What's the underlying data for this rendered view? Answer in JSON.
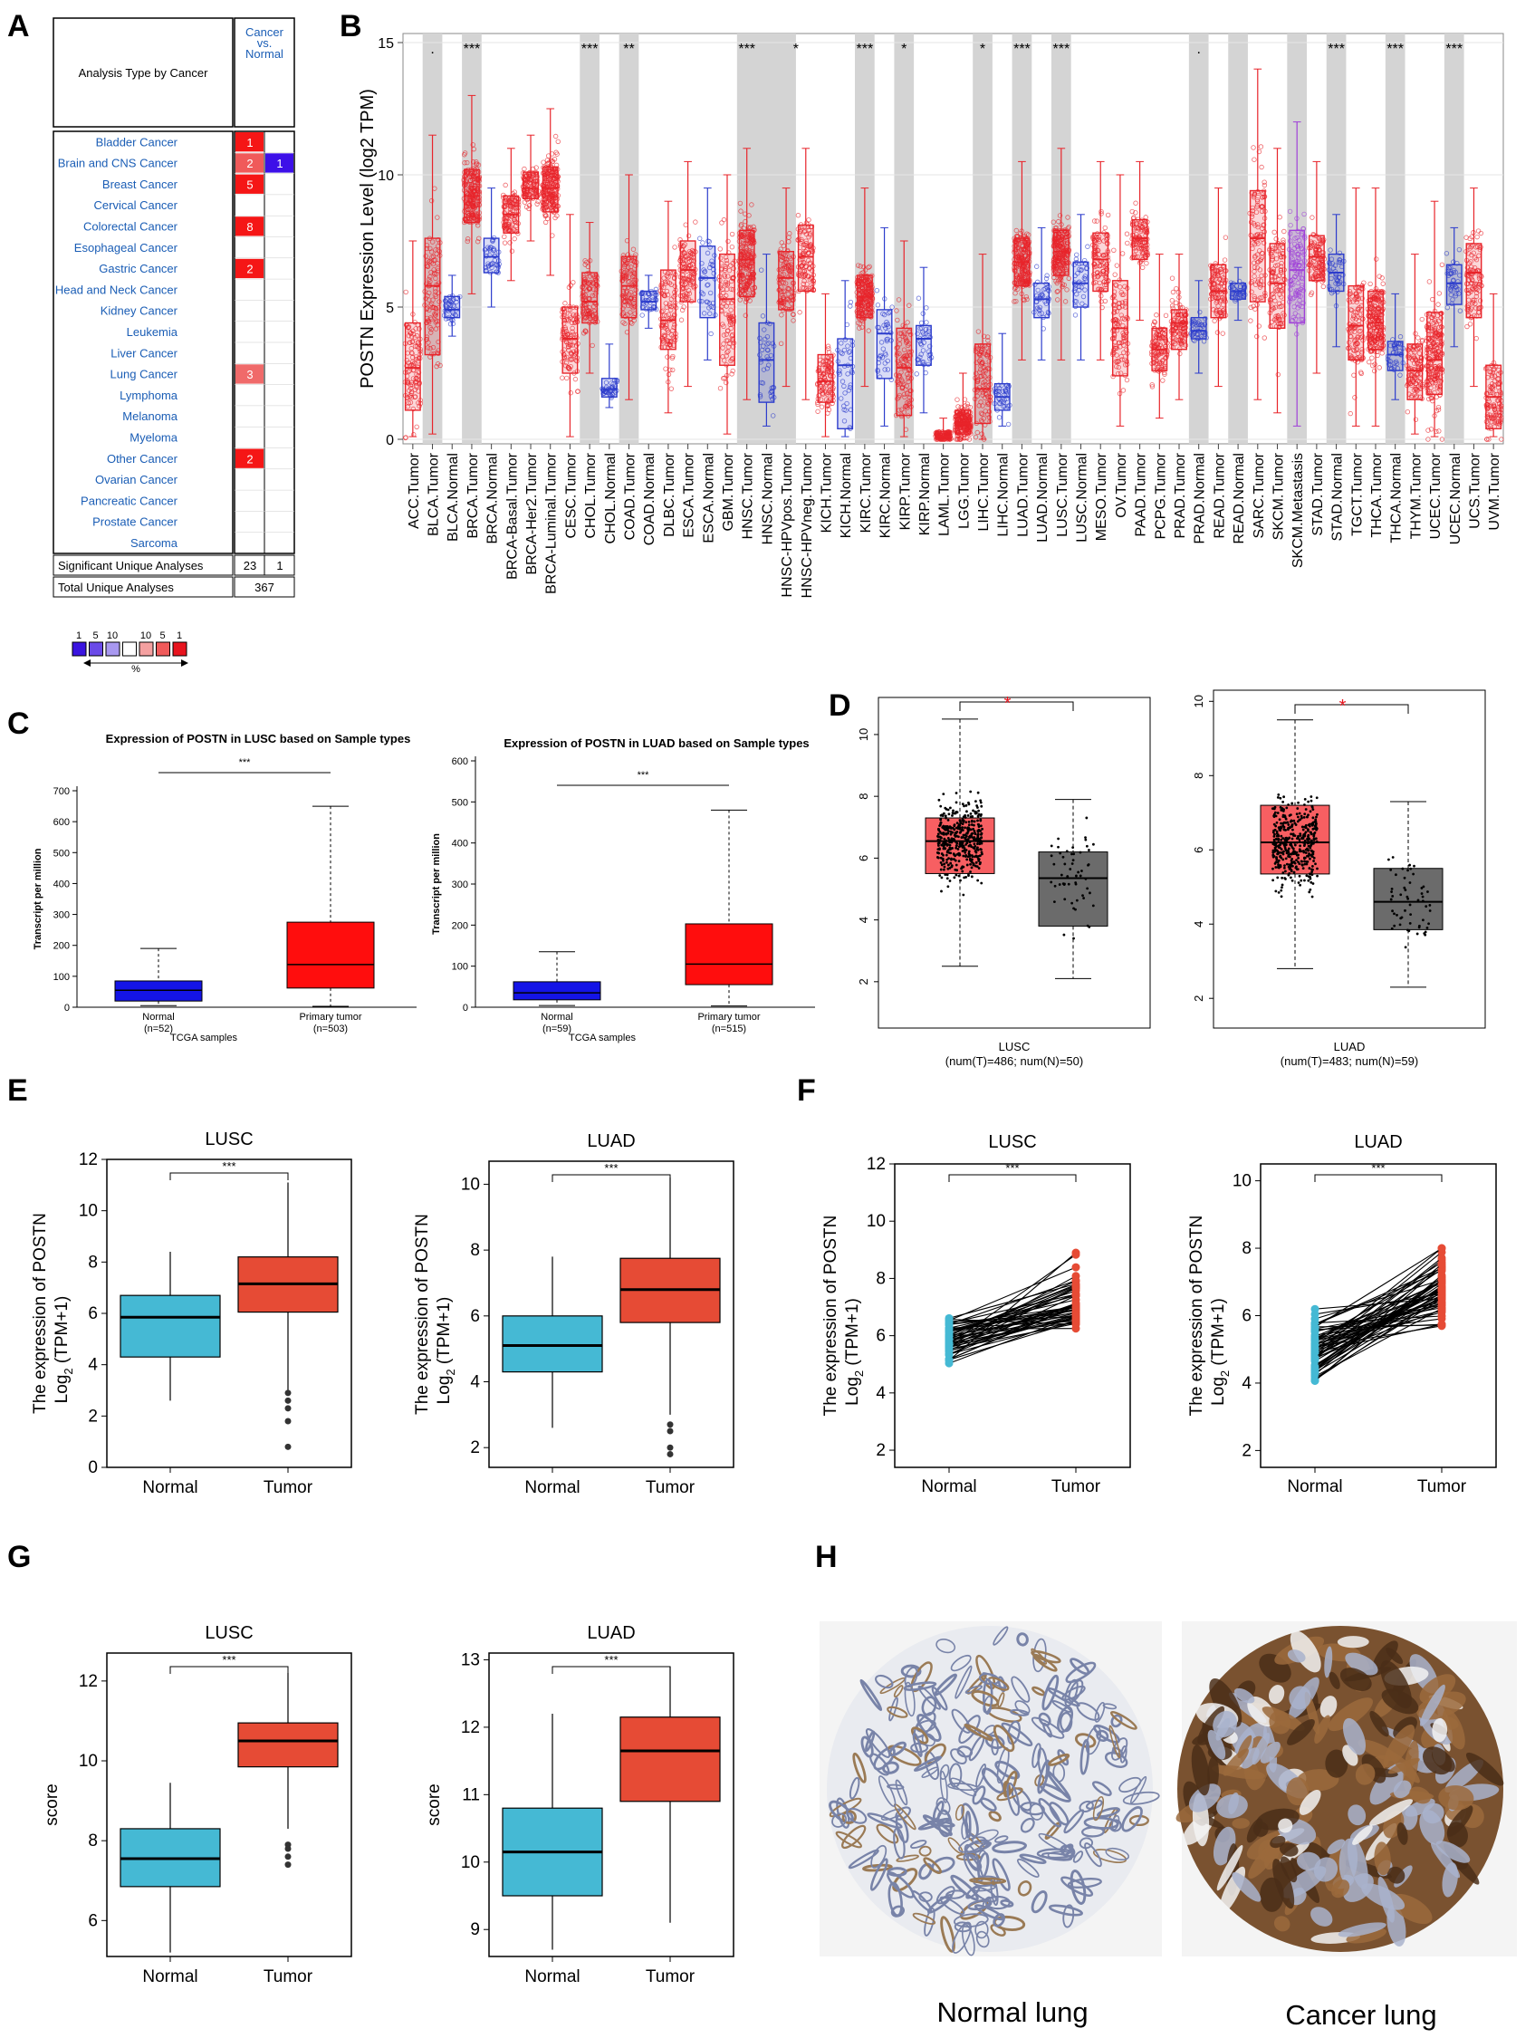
{
  "panels": {
    "A": "A",
    "B": "B",
    "C": "C",
    "D": "D",
    "E": "E",
    "F": "F",
    "G": "G",
    "H": "H"
  },
  "oncomine": {
    "header_left": "Analysis Type by Cancer",
    "header_right": [
      "Cancer",
      "vs.",
      "Normal"
    ],
    "rows": [
      {
        "name": "Bladder Cancer",
        "up": "1",
        "down": ""
      },
      {
        "name": "Brain and CNS Cancer",
        "up": "2",
        "down": "1"
      },
      {
        "name": "Breast Cancer",
        "up": "5",
        "down": ""
      },
      {
        "name": "Cervical Cancer",
        "up": "",
        "down": ""
      },
      {
        "name": "Colorectal Cancer",
        "up": "8",
        "down": ""
      },
      {
        "name": "Esophageal Cancer",
        "up": "",
        "down": ""
      },
      {
        "name": "Gastric Cancer",
        "up": "2",
        "down": ""
      },
      {
        "name": "Head and Neck Cancer",
        "up": "",
        "down": ""
      },
      {
        "name": "Kidney Cancer",
        "up": "",
        "down": ""
      },
      {
        "name": "Leukemia",
        "up": "",
        "down": ""
      },
      {
        "name": "Liver Cancer",
        "up": "",
        "down": ""
      },
      {
        "name": "Lung Cancer",
        "up": "3",
        "down": ""
      },
      {
        "name": "Lymphoma",
        "up": "",
        "down": ""
      },
      {
        "name": "Melanoma",
        "up": "",
        "down": ""
      },
      {
        "name": "Myeloma",
        "up": "",
        "down": ""
      },
      {
        "name": "Other Cancer",
        "up": "2",
        "down": ""
      },
      {
        "name": "Ovarian Cancer",
        "up": "",
        "down": ""
      },
      {
        "name": "Pancreatic Cancer",
        "up": "",
        "down": ""
      },
      {
        "name": "Prostate Cancer",
        "up": "",
        "down": ""
      },
      {
        "name": "Sarcoma",
        "up": "",
        "down": ""
      }
    ],
    "sig_label": "Significant Unique Analyses",
    "sig_up": "23",
    "sig_down": "1",
    "total_label": "Total Unique Analyses",
    "total": "367",
    "legend_values": [
      "1",
      "5",
      "10",
      "",
      "10",
      "5",
      "1"
    ],
    "legend_colors": [
      "#3a14e0",
      "#6a4ae8",
      "#a898f0",
      "#ffffff",
      "#f4a0a0",
      "#f05a5a",
      "#e8141e"
    ],
    "legend_unit": "%"
  },
  "timer": {
    "ylabel": "POSTN Expression Level (log2 TPM)",
    "yticks": [
      "0",
      "5",
      "10",
      "15"
    ],
    "ymax": 15,
    "tumor_color": "#e8242a",
    "normal_color": "#2c3ccc",
    "metastasis_color": "#a040d8",
    "groups": [
      {
        "label": "ACC.Tumor",
        "q1": 1.1,
        "med": 2.7,
        "q3": 4.4,
        "lo": 0.1,
        "hi": 7.5,
        "t": "tumor"
      },
      {
        "label": "BLCA.Tumor",
        "q1": 3.2,
        "med": 5.8,
        "q3": 7.6,
        "lo": 0.2,
        "hi": 11.5,
        "t": "tumor"
      },
      {
        "label": "BLCA.Normal",
        "q1": 4.6,
        "med": 4.9,
        "q3": 5.4,
        "lo": 3.9,
        "hi": 6.2,
        "t": "normal"
      },
      {
        "label": "BRCA.Tumor",
        "q1": 8.2,
        "med": 9.2,
        "q3": 10.2,
        "lo": 5.5,
        "hi": 13.0,
        "t": "tumor"
      },
      {
        "label": "BRCA.Normal",
        "q1": 6.3,
        "med": 6.9,
        "q3": 7.6,
        "lo": 5.0,
        "hi": 9.5,
        "t": "normal"
      },
      {
        "label": "BRCA-Basal.Tumor",
        "q1": 7.8,
        "med": 8.5,
        "q3": 9.2,
        "lo": 6.0,
        "hi": 11.0,
        "t": "tumor"
      },
      {
        "label": "BRCA-Her2.Tumor",
        "q1": 9.1,
        "med": 9.5,
        "q3": 10.1,
        "lo": 7.5,
        "hi": 11.5,
        "t": "tumor"
      },
      {
        "label": "BRCA-Luminal.Tumor",
        "q1": 8.6,
        "med": 9.5,
        "q3": 10.3,
        "lo": 6.2,
        "hi": 12.5,
        "t": "tumor"
      },
      {
        "label": "CESC.Tumor",
        "q1": 2.5,
        "med": 3.8,
        "q3": 5.0,
        "lo": 0.1,
        "hi": 8.5,
        "t": "tumor"
      },
      {
        "label": "CHOL.Tumor",
        "q1": 4.4,
        "med": 5.2,
        "q3": 6.3,
        "lo": 2.5,
        "hi": 8.2,
        "t": "tumor"
      },
      {
        "label": "CHOL.Normal",
        "q1": 1.6,
        "med": 1.9,
        "q3": 2.3,
        "lo": 1.2,
        "hi": 3.6,
        "t": "normal"
      },
      {
        "label": "COAD.Tumor",
        "q1": 4.6,
        "med": 5.8,
        "q3": 6.9,
        "lo": 1.5,
        "hi": 10.0,
        "t": "tumor"
      },
      {
        "label": "COAD.Normal",
        "q1": 4.9,
        "med": 5.2,
        "q3": 5.6,
        "lo": 4.2,
        "hi": 6.2,
        "t": "normal"
      },
      {
        "label": "DLBC.Tumor",
        "q1": 3.4,
        "med": 4.5,
        "q3": 6.4,
        "lo": 1.0,
        "hi": 9.0,
        "t": "tumor"
      },
      {
        "label": "ESCA.Tumor",
        "q1": 5.2,
        "med": 6.4,
        "q3": 7.5,
        "lo": 2.0,
        "hi": 10.5,
        "t": "tumor"
      },
      {
        "label": "ESCA.Normal",
        "q1": 4.6,
        "med": 6.1,
        "q3": 7.3,
        "lo": 3.0,
        "hi": 9.5,
        "t": "normal"
      },
      {
        "label": "GBM.Tumor",
        "q1": 2.8,
        "med": 5.3,
        "q3": 7.0,
        "lo": 0.2,
        "hi": 10.0,
        "t": "tumor"
      },
      {
        "label": "HNSC.Tumor",
        "q1": 5.4,
        "med": 6.8,
        "q3": 7.9,
        "lo": 1.5,
        "hi": 11.0,
        "t": "tumor"
      },
      {
        "label": "HNSC.Normal",
        "q1": 1.4,
        "med": 3.0,
        "q3": 4.4,
        "lo": 0.5,
        "hi": 7.0,
        "t": "normal"
      },
      {
        "label": "HNSC-HPVpos.Tumor",
        "q1": 4.9,
        "med": 6.1,
        "q3": 7.1,
        "lo": 2.0,
        "hi": 9.5,
        "t": "tumor"
      },
      {
        "label": "HNSC-HPVneg.Tumor",
        "q1": 5.6,
        "med": 6.9,
        "q3": 8.1,
        "lo": 1.5,
        "hi": 11.0,
        "t": "tumor"
      },
      {
        "label": "KICH.Tumor",
        "q1": 1.4,
        "med": 2.2,
        "q3": 3.2,
        "lo": 0.1,
        "hi": 5.5,
        "t": "tumor"
      },
      {
        "label": "KICH.Normal",
        "q1": 0.4,
        "med": 2.8,
        "q3": 3.8,
        "lo": 0.1,
        "hi": 6.0,
        "t": "normal"
      },
      {
        "label": "KIRC.Tumor",
        "q1": 4.6,
        "med": 5.4,
        "q3": 6.2,
        "lo": 2.0,
        "hi": 9.5,
        "t": "tumor"
      },
      {
        "label": "KIRC.Normal",
        "q1": 2.3,
        "med": 4.0,
        "q3": 4.9,
        "lo": 0.5,
        "hi": 8.0,
        "t": "normal"
      },
      {
        "label": "KIRP.Tumor",
        "q1": 0.9,
        "med": 2.7,
        "q3": 4.2,
        "lo": 0.1,
        "hi": 7.5,
        "t": "tumor"
      },
      {
        "label": "KIRP.Normal",
        "q1": 2.8,
        "med": 3.8,
        "q3": 4.3,
        "lo": 1.0,
        "hi": 6.5,
        "t": "normal"
      },
      {
        "label": "LAML.Tumor",
        "q1": 0.0,
        "med": 0.1,
        "q3": 0.3,
        "lo": 0.0,
        "hi": 0.8,
        "t": "tumor"
      },
      {
        "label": "LGG.Tumor",
        "q1": 0.2,
        "med": 0.6,
        "q3": 1.1,
        "lo": 0.0,
        "hi": 2.5,
        "t": "tumor"
      },
      {
        "label": "LIHC.Tumor",
        "q1": 0.6,
        "med": 1.9,
        "q3": 3.6,
        "lo": 0.0,
        "hi": 7.0,
        "t": "tumor"
      },
      {
        "label": "LIHC.Normal",
        "q1": 1.1,
        "med": 1.6,
        "q3": 2.1,
        "lo": 0.5,
        "hi": 4.0,
        "t": "normal"
      },
      {
        "label": "LUAD.Tumor",
        "q1": 5.8,
        "med": 6.7,
        "q3": 7.6,
        "lo": 3.0,
        "hi": 10.5,
        "t": "tumor"
      },
      {
        "label": "LUAD.Normal",
        "q1": 4.6,
        "med": 5.3,
        "q3": 5.9,
        "lo": 3.0,
        "hi": 8.0,
        "t": "normal"
      },
      {
        "label": "LUSC.Tumor",
        "q1": 6.2,
        "med": 7.1,
        "q3": 7.9,
        "lo": 3.0,
        "hi": 11.0,
        "t": "tumor"
      },
      {
        "label": "LUSC.Normal",
        "q1": 5.0,
        "med": 5.9,
        "q3": 6.7,
        "lo": 3.0,
        "hi": 8.5,
        "t": "normal"
      },
      {
        "label": "MESO.Tumor",
        "q1": 5.6,
        "med": 6.8,
        "q3": 7.8,
        "lo": 3.0,
        "hi": 10.5,
        "t": "tumor"
      },
      {
        "label": "OV.Tumor",
        "q1": 2.4,
        "med": 4.2,
        "q3": 6.0,
        "lo": 0.5,
        "hi": 10.0,
        "t": "tumor"
      },
      {
        "label": "PAAD.Tumor",
        "q1": 6.8,
        "med": 7.6,
        "q3": 8.3,
        "lo": 4.5,
        "hi": 10.5,
        "t": "tumor"
      },
      {
        "label": "PCPG.Tumor",
        "q1": 2.6,
        "med": 3.4,
        "q3": 4.2,
        "lo": 0.8,
        "hi": 7.0,
        "t": "tumor"
      },
      {
        "label": "PRAD.Tumor",
        "q1": 3.4,
        "med": 4.4,
        "q3": 4.9,
        "lo": 1.5,
        "hi": 7.0,
        "t": "tumor"
      },
      {
        "label": "PRAD.Normal",
        "q1": 3.8,
        "med": 4.1,
        "q3": 4.6,
        "lo": 2.5,
        "hi": 6.0,
        "t": "normal"
      },
      {
        "label": "READ.Tumor",
        "q1": 4.6,
        "med": 5.6,
        "q3": 6.6,
        "lo": 2.0,
        "hi": 9.5,
        "t": "tumor"
      },
      {
        "label": "READ.Normal",
        "q1": 5.3,
        "med": 5.6,
        "q3": 5.9,
        "lo": 4.5,
        "hi": 6.5,
        "t": "normal"
      },
      {
        "label": "SARC.Tumor",
        "q1": 5.2,
        "med": 7.6,
        "q3": 9.4,
        "lo": 1.5,
        "hi": 14.0,
        "t": "tumor"
      },
      {
        "label": "SKCM.Tumor",
        "q1": 4.2,
        "med": 5.9,
        "q3": 7.4,
        "lo": 1.0,
        "hi": 11.0,
        "t": "tumor"
      },
      {
        "label": "SKCM.Metastasis",
        "q1": 4.4,
        "med": 6.4,
        "q3": 7.9,
        "lo": 0.5,
        "hi": 12.0,
        "t": "metastasis"
      },
      {
        "label": "STAD.Tumor",
        "q1": 6.0,
        "med": 6.9,
        "q3": 7.7,
        "lo": 2.5,
        "hi": 10.5,
        "t": "tumor"
      },
      {
        "label": "STAD.Normal",
        "q1": 5.6,
        "med": 6.3,
        "q3": 7.0,
        "lo": 3.5,
        "hi": 8.5,
        "t": "normal"
      },
      {
        "label": "TGCT.Tumor",
        "q1": 3.0,
        "med": 4.3,
        "q3": 5.8,
        "lo": 0.5,
        "hi": 9.5,
        "t": "tumor"
      },
      {
        "label": "THCA.Tumor",
        "q1": 3.4,
        "med": 4.4,
        "q3": 5.6,
        "lo": 0.5,
        "hi": 9.5,
        "t": "tumor"
      },
      {
        "label": "THCA.Normal",
        "q1": 2.6,
        "med": 3.2,
        "q3": 3.7,
        "lo": 1.5,
        "hi": 5.5,
        "t": "normal"
      },
      {
        "label": "THYM.Tumor",
        "q1": 1.5,
        "med": 2.6,
        "q3": 3.6,
        "lo": 0.2,
        "hi": 7.0,
        "t": "tumor"
      },
      {
        "label": "UCEC.Tumor",
        "q1": 1.7,
        "med": 3.0,
        "q3": 4.8,
        "lo": 0.1,
        "hi": 9.0,
        "t": "tumor"
      },
      {
        "label": "UCEC.Normal",
        "q1": 5.1,
        "med": 5.9,
        "q3": 6.6,
        "lo": 3.5,
        "hi": 8.0,
        "t": "normal"
      },
      {
        "label": "UCS.Tumor",
        "q1": 4.6,
        "med": 6.3,
        "q3": 7.4,
        "lo": 2.0,
        "hi": 9.5,
        "t": "tumor"
      },
      {
        "label": "UVM.Tumor",
        "q1": 0.4,
        "med": 1.6,
        "q3": 2.8,
        "lo": 0.1,
        "hi": 5.5,
        "t": "tumor"
      }
    ],
    "stars": [
      {
        "i": 1.5,
        "s": "."
      },
      {
        "i": 3.5,
        "s": "***"
      },
      {
        "i": 9.5,
        "s": "***"
      },
      {
        "i": 11.5,
        "s": "**"
      },
      {
        "i": 17.5,
        "s": "***"
      },
      {
        "i": 20,
        "s": "*"
      },
      {
        "i": 23.5,
        "s": "***"
      },
      {
        "i": 25.5,
        "s": "*"
      },
      {
        "i": 29.5,
        "s": "*"
      },
      {
        "i": 31.5,
        "s": "***"
      },
      {
        "i": 33.5,
        "s": "***"
      },
      {
        "i": 40.5,
        "s": "."
      },
      {
        "i": 47.5,
        "s": "***"
      },
      {
        "i": 50.5,
        "s": "***"
      },
      {
        "i": 53.5,
        "s": "***"
      }
    ],
    "shaded": [
      [
        1,
        2
      ],
      [
        3,
        4
      ],
      [
        9,
        10
      ],
      [
        11,
        12
      ],
      [
        17,
        20
      ],
      [
        23,
        24
      ],
      [
        25,
        26
      ],
      [
        29,
        30
      ],
      [
        31,
        32
      ],
      [
        33,
        34
      ],
      [
        40,
        41
      ],
      [
        42,
        43
      ],
      [
        45,
        46
      ],
      [
        47,
        48
      ],
      [
        50,
        51
      ],
      [
        53,
        54
      ]
    ]
  },
  "ualcan": [
    {
      "title": "Expression of POSTN in LUSC based on Sample types",
      "ylabel": "Transcript per million",
      "yticks": [
        "0",
        "100",
        "200",
        "300",
        "400",
        "500",
        "600",
        "700"
      ],
      "ymax": 700,
      "xlabel": "TCGA samples",
      "stars": "***",
      "cats": [
        {
          "name": "Normal",
          "n": "(n=52)",
          "q1": 20,
          "med": 55,
          "q3": 85,
          "lo": 5,
          "hi": 190,
          "color": "#1414e6"
        },
        {
          "name": "Primary tumor",
          "n": "(n=503)",
          "q1": 62,
          "med": 138,
          "q3": 275,
          "lo": 3,
          "hi": 650,
          "color": "#ff0d0d"
        }
      ]
    },
    {
      "title": "Expression of POSTN in LUAD based on Sample types",
      "ylabel": "Transcript per million",
      "yticks": [
        "0",
        "100",
        "200",
        "300",
        "400",
        "500",
        "600"
      ],
      "ymax": 600,
      "xlabel": "TCGA samples",
      "stars": "***",
      "cats": [
        {
          "name": "Normal",
          "n": "(n=59)",
          "q1": 18,
          "med": 35,
          "q3": 62,
          "lo": 4,
          "hi": 135,
          "color": "#1414e6"
        },
        {
          "name": "Primary tumor",
          "n": "(n=515)",
          "q1": 55,
          "med": 105,
          "q3": 203,
          "lo": 3,
          "hi": 480,
          "color": "#ff0d0d"
        }
      ]
    }
  ],
  "gepia": [
    {
      "xlabel": "LUSC",
      "sub": "(num(T)=486; num(N)=50)",
      "yticks": [
        "2",
        "4",
        "6",
        "8",
        "10"
      ],
      "ymin": 0.5,
      "ymax": 11.2,
      "tumor": {
        "q1": 5.5,
        "med": 6.55,
        "q3": 7.3,
        "lo": 2.5,
        "hi": 10.5
      },
      "normal": {
        "q1": 3.8,
        "med": 5.35,
        "q3": 6.2,
        "lo": 2.1,
        "hi": 7.9
      },
      "star": "*"
    },
    {
      "xlabel": "LUAD",
      "sub": "(num(T)=483; num(N)=59)",
      "yticks": [
        "2",
        "4",
        "6",
        "8",
        "10"
      ],
      "ymin": 1.2,
      "ymax": 10.3,
      "tumor": {
        "q1": 5.35,
        "med": 6.2,
        "q3": 7.2,
        "lo": 2.8,
        "hi": 9.5
      },
      "normal": {
        "q1": 3.85,
        "med": 4.6,
        "q3": 5.5,
        "lo": 2.3,
        "hi": 7.3
      },
      "star": "*"
    }
  ],
  "box_unpaired": [
    {
      "title": "LUSC",
      "yticks": [
        "0",
        "2",
        "4",
        "6",
        "8",
        "10",
        "12"
      ],
      "ymin": 0,
      "ymax": 12,
      "stars": "***",
      "n": {
        "q1": 4.3,
        "med": 5.85,
        "q3": 6.7,
        "lo": 2.6,
        "hi": 8.4
      },
      "t": {
        "q1": 6.05,
        "med": 7.15,
        "q3": 8.2,
        "lo": 3.0,
        "hi": 11.1
      },
      "out": [
        2.9,
        2.6,
        2.3,
        1.8,
        0.8
      ]
    },
    {
      "title": "LUAD",
      "yticks": [
        "2",
        "4",
        "6",
        "8",
        "10"
      ],
      "ymin": 1.4,
      "ymax": 10.7,
      "stars": "***",
      "n": {
        "q1": 4.3,
        "med": 5.1,
        "q3": 6.0,
        "lo": 2.6,
        "hi": 7.8
      },
      "t": {
        "q1": 5.8,
        "med": 6.8,
        "q3": 7.75,
        "lo": 3.0,
        "hi": 10.2
      },
      "out": [
        2.7,
        2.5,
        2.0,
        1.8
      ]
    }
  ],
  "paired": [
    {
      "title": "LUSC",
      "yticks": [
        "2",
        "4",
        "6",
        "8",
        "10",
        "12"
      ],
      "ymin": 1.4,
      "ymax": 12,
      "stars": "***"
    },
    {
      "title": "LUAD",
      "yticks": [
        "2",
        "4",
        "6",
        "8",
        "10"
      ],
      "ymin": 1.5,
      "ymax": 10.5,
      "stars": "***"
    }
  ],
  "score": [
    {
      "title": "LUSC",
      "yticks": [
        "6",
        "8",
        "10",
        "12"
      ],
      "ymin": 5.1,
      "ymax": 12.7,
      "stars": "***",
      "n": {
        "q1": 6.85,
        "med": 7.55,
        "q3": 8.3,
        "lo": 5.2,
        "hi": 9.45
      },
      "t": {
        "q1": 9.85,
        "med": 10.5,
        "q3": 10.95,
        "lo": 8.3,
        "hi": 12.2
      },
      "out": [
        7.9,
        7.8,
        7.6,
        7.4
      ]
    },
    {
      "title": "LUAD",
      "yticks": [
        "9",
        "10",
        "11",
        "12",
        "13"
      ],
      "ymin": 8.6,
      "ymax": 13.1,
      "stars": "***",
      "n": {
        "q1": 9.5,
        "med": 10.15,
        "q3": 10.8,
        "lo": 8.7,
        "hi": 12.2
      },
      "t": {
        "q1": 10.9,
        "med": 11.65,
        "q3": 12.15,
        "lo": 9.1,
        "hi": 12.9
      },
      "out": []
    }
  ],
  "common": {
    "normal_label": "Normal",
    "tumor_label": "Tumor",
    "ylabel_expr_1": "The expression of POSTN",
    "ylabel_expr_2": "Log",
    "ylabel_expr_sub": "2",
    "ylabel_expr_3": " (TPM+1)",
    "ylabel_score": "score",
    "normal_color": "#45b9d4",
    "tumor_color": "#e64b35"
  },
  "ihc": {
    "normal": "Normal lung",
    "cancer": "Cancer lung"
  }
}
